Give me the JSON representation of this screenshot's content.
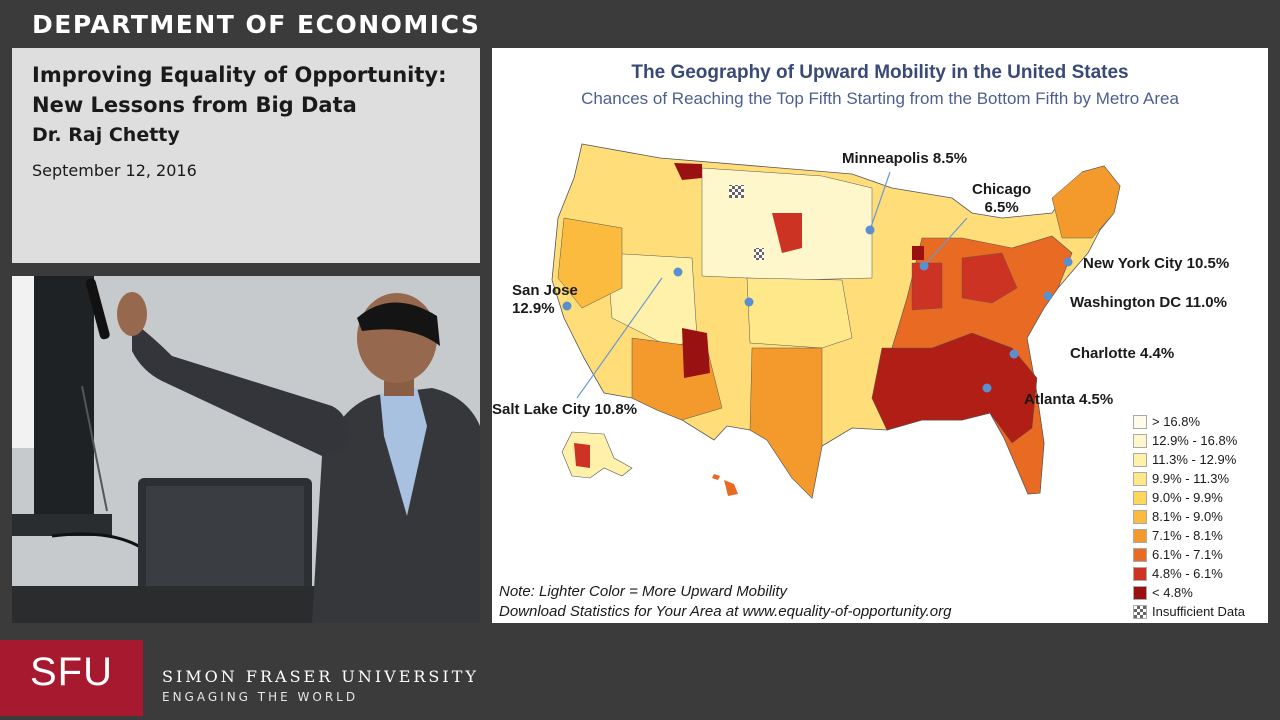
{
  "header": {
    "department": "DEPARTMENT OF ECONOMICS"
  },
  "talk": {
    "title": "Improving Equality of Opportunity: New Lessons from Big Data",
    "speaker": "Dr. Raj Chetty",
    "date": "September 12, 2016"
  },
  "slide": {
    "title": "The Geography of Upward Mobility in the United States",
    "subtitle": "Chances of Reaching the Top Fifth Starting from the Bottom Fifth by Metro Area",
    "cities": [
      {
        "name": "Minneapolis",
        "value": "8.5%"
      },
      {
        "name": "Chicago",
        "value": "6.5%"
      },
      {
        "name": "New York City",
        "value": "10.5%"
      },
      {
        "name": "Washington DC",
        "value": "11.0%"
      },
      {
        "name": "San Jose",
        "value": "12.9%"
      },
      {
        "name": "Charlotte",
        "value": "4.4%"
      },
      {
        "name": "Atlanta",
        "value": "4.5%"
      },
      {
        "name": "Salt Lake City",
        "value": "10.8%"
      }
    ],
    "legend": [
      {
        "label": "> 16.8%",
        "color": "#fffbe8"
      },
      {
        "label": "12.9% - 16.8%",
        "color": "#fff7cc"
      },
      {
        "label": "11.3% - 12.9%",
        "color": "#fff1aa"
      },
      {
        "label": "9.9% - 11.3%",
        "color": "#ffe88a"
      },
      {
        "label": "9.0% - 9.9%",
        "color": "#ffd85a"
      },
      {
        "label": "8.1% - 9.0%",
        "color": "#fbbb3f"
      },
      {
        "label": "7.1% - 8.1%",
        "color": "#f49a2c"
      },
      {
        "label": "6.1% - 7.1%",
        "color": "#e96a22"
      },
      {
        "label": "4.8% - 6.1%",
        "color": "#cc3322"
      },
      {
        "label": "< 4.8%",
        "color": "#991111"
      },
      {
        "label": "Insufficient Data",
        "color": "pattern"
      }
    ],
    "note1": "Note: Lighter Color = More Upward Mobility",
    "note2": "Download Statistics for Your Area at www.equality-of-opportunity.org"
  },
  "footer": {
    "logo_text": "SFU",
    "university": "SIMON FRASER UNIVERSITY",
    "tagline": "ENGAGING THE WORLD",
    "brand_color": "#a6192e"
  }
}
